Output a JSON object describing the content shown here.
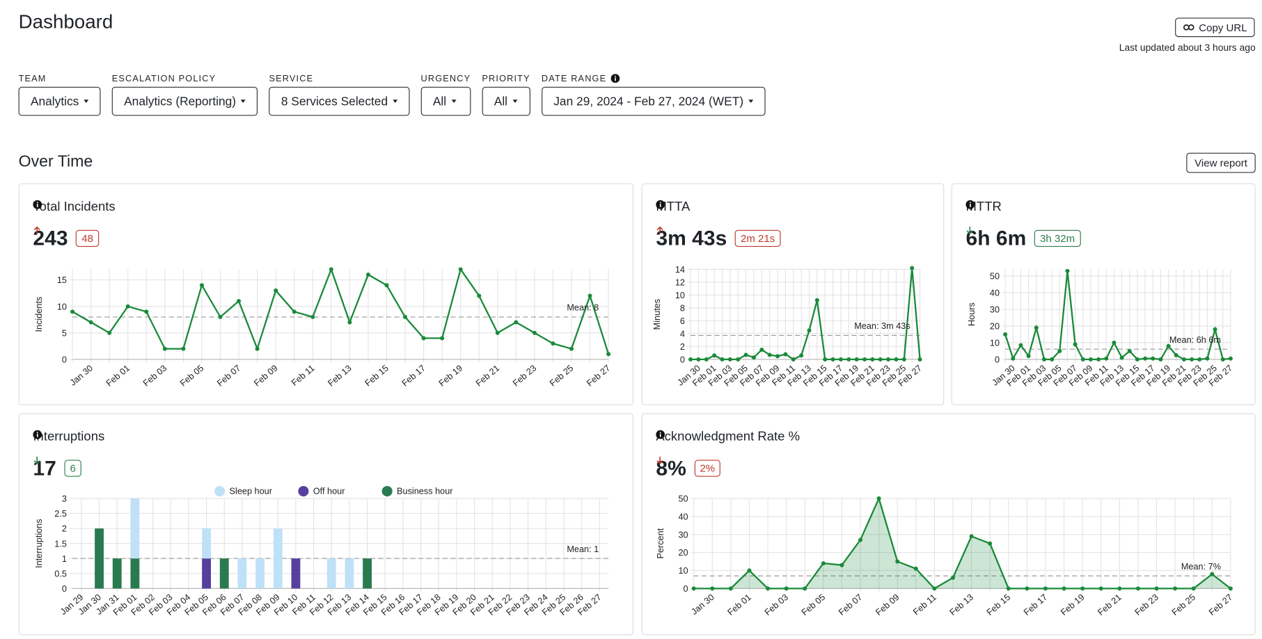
{
  "header": {
    "title": "Dashboard",
    "copy_button": "Copy URL",
    "last_updated": "Last updated about 3 hours ago"
  },
  "filters": [
    {
      "label": "TEAM",
      "value": "Analytics"
    },
    {
      "label": "ESCALATION POLICY",
      "value": "Analytics (Reporting)"
    },
    {
      "label": "SERVICE",
      "value": "8 Services Selected"
    },
    {
      "label": "URGENCY",
      "value": "All"
    },
    {
      "label": "PRIORITY",
      "value": "All"
    },
    {
      "label": "DATE RANGE",
      "value": "Jan 29, 2024 - Feb 27, 2024 (WET)"
    }
  ],
  "section": {
    "title": "Over Time",
    "button": "View report"
  },
  "chart_data": [
    {
      "type": "line",
      "title": "Total Incidents",
      "metric": "243",
      "delta": "48",
      "delta_arrow": "up",
      "delta_color": "#c0392b",
      "y_label": "Incidents",
      "color": "#1a8a3a",
      "grid": true,
      "categories": [
        null,
        "Jan 30",
        null,
        "Feb 01",
        null,
        "Feb 03",
        null,
        "Feb 05",
        null,
        "Feb 07",
        null,
        "Feb 09",
        null,
        "Feb 11",
        null,
        "Feb 13",
        null,
        "Feb 15",
        null,
        "Feb 17",
        null,
        "Feb 19",
        null,
        "Feb 21",
        null,
        "Feb 23",
        null,
        "Feb 25",
        null,
        "Feb 27"
      ],
      "values": [
        9,
        7,
        5,
        10,
        9,
        2,
        2,
        14,
        8,
        11,
        2,
        13,
        9,
        8,
        17,
        7,
        16,
        14,
        8,
        4,
        4,
        17,
        12,
        5,
        7,
        5,
        3,
        2,
        12,
        1
      ],
      "ylim": [
        0,
        17
      ],
      "yticks": [
        0,
        5,
        10,
        15
      ],
      "mean": {
        "value": 8,
        "label": "Mean: 8"
      }
    },
    {
      "type": "line",
      "title": "MTTA",
      "metric": "3m 43s",
      "delta": "2m 21s",
      "delta_arrow": "up",
      "delta_color": "#c0392b",
      "y_label": "Minutes",
      "color": "#1a8a3a",
      "grid": true,
      "categories": [
        null,
        "Jan 30",
        null,
        "Feb 01",
        null,
        "Feb 03",
        null,
        "Feb 05",
        null,
        "Feb 07",
        null,
        "Feb 09",
        null,
        "Feb 11",
        null,
        "Feb 13",
        null,
        "Feb 15",
        null,
        "Feb 17",
        null,
        "Feb 19",
        null,
        "Feb 21",
        null,
        "Feb 23",
        null,
        "Feb 25",
        null,
        "Feb 27"
      ],
      "values": [
        0,
        0,
        0,
        0.6,
        0,
        0,
        0,
        0.7,
        0.3,
        1.5,
        0.7,
        0.5,
        0.8,
        0,
        0.6,
        4.5,
        9.2,
        0,
        0,
        0,
        0,
        0,
        0,
        0,
        0,
        0,
        0,
        0,
        14.2,
        0
      ],
      "ylim": [
        0,
        14
      ],
      "yticks": [
        0,
        2,
        4,
        6,
        8,
        10,
        12,
        14
      ],
      "mean": {
        "value": 3.72,
        "label": "Mean: 3m 43s"
      }
    },
    {
      "type": "line",
      "title": "MTTR",
      "metric": "6h 6m",
      "delta": "3h 32m",
      "delta_arrow": "down",
      "delta_color": "#2e7d4f",
      "y_label": "Hours",
      "color": "#1a8a3a",
      "grid": true,
      "categories": [
        null,
        "Jan 30",
        null,
        "Feb 01",
        null,
        "Feb 03",
        null,
        "Feb 05",
        null,
        "Feb 07",
        null,
        "Feb 09",
        null,
        "Feb 11",
        null,
        "Feb 13",
        null,
        "Feb 15",
        null,
        "Feb 17",
        null,
        "Feb 19",
        null,
        "Feb 21",
        null,
        "Feb 23",
        null,
        "Feb 25",
        null,
        "Feb 27"
      ],
      "values": [
        15,
        0.5,
        8.5,
        2,
        19,
        0,
        0,
        5,
        53,
        9,
        0,
        0,
        0,
        0.5,
        10,
        1,
        5,
        0,
        0.5,
        0.5,
        0,
        8,
        2.5,
        0,
        0,
        0,
        0.5,
        18,
        0,
        0.5
      ],
      "ylim": [
        0,
        54
      ],
      "yticks": [
        0,
        10,
        20,
        30,
        40,
        50
      ],
      "mean": {
        "value": 6.1,
        "label": "Mean: 6h 6m"
      }
    },
    {
      "type": "stacked-bar",
      "title": "Interruptions",
      "metric": "17",
      "delta": "6",
      "delta_arrow": "down",
      "delta_color": "#2e7d4f",
      "y_label": "Interruptions",
      "grid": true,
      "categories": [
        "Jan 29",
        "Jan 30",
        "Jan 31",
        "Feb 01",
        "Feb 02",
        "Feb 03",
        "Feb 04",
        "Feb 05",
        "Feb 06",
        "Feb 07",
        "Feb 08",
        "Feb 09",
        "Feb 10",
        "Feb 11",
        "Feb 12",
        "Feb 13",
        "Feb 14",
        "Feb 15",
        "Feb 16",
        "Feb 17",
        "Feb 18",
        "Feb 19",
        "Feb 20",
        "Feb 21",
        "Feb 22",
        "Feb 23",
        "Feb 24",
        "Feb 25",
        "Feb 26",
        "Feb 27"
      ],
      "series": [
        {
          "name": "Sleep hour",
          "color": "#bfe1f7",
          "values": [
            0,
            0,
            0,
            2,
            0,
            0,
            0,
            1,
            0,
            1,
            1,
            2,
            0,
            0,
            1,
            1,
            0,
            0,
            0,
            0,
            0,
            0,
            0,
            0,
            0,
            0,
            0,
            0,
            0,
            0
          ]
        },
        {
          "name": "Off hour",
          "color": "#55409e",
          "values": [
            0,
            0,
            0,
            0,
            0,
            0,
            0,
            1,
            0,
            0,
            0,
            0,
            1,
            0,
            0,
            0,
            0,
            0,
            0,
            0,
            0,
            0,
            0,
            0,
            0,
            0,
            0,
            0,
            0,
            0
          ]
        },
        {
          "name": "Business hour",
          "color": "#2a7a4f",
          "values": [
            0,
            2,
            1,
            1,
            0,
            0,
            0,
            0,
            1,
            0,
            0,
            0,
            0,
            0,
            0,
            0,
            1,
            0,
            0,
            0,
            0,
            0,
            0,
            0,
            0,
            0,
            0,
            0,
            0,
            0
          ]
        }
      ],
      "ylim": [
        0,
        3
      ],
      "yticks": [
        0,
        0.5,
        1,
        1.5,
        2,
        2.5,
        3
      ],
      "mean": {
        "value": 1,
        "label": "Mean: 1"
      }
    },
    {
      "type": "area",
      "title": "Acknowledgment Rate %",
      "metric": "8%",
      "delta": "2%",
      "delta_arrow": "down",
      "delta_color": "#c0392b",
      "y_label": "Percent",
      "color": "#1a8a3a",
      "grid": true,
      "categories": [
        null,
        "Jan 30",
        null,
        "Feb 01",
        null,
        "Feb 03",
        null,
        "Feb 05",
        null,
        "Feb 07",
        null,
        "Feb 09",
        null,
        "Feb 11",
        null,
        "Feb 13",
        null,
        "Feb 15",
        null,
        "Feb 17",
        null,
        "Feb 19",
        null,
        "Feb 21",
        null,
        "Feb 23",
        null,
        "Feb 25",
        null,
        "Feb 27"
      ],
      "values": [
        0,
        0,
        0,
        10,
        0,
        0,
        0,
        14,
        13,
        27,
        50,
        15,
        11,
        0,
        6,
        29,
        25,
        0,
        0,
        0,
        0,
        0,
        0,
        0,
        0,
        0,
        0,
        0,
        8,
        0
      ],
      "ylim": [
        0,
        50
      ],
      "yticks": [
        0,
        10,
        20,
        30,
        40,
        50
      ],
      "mean": {
        "value": 7,
        "label": "Mean: 7%"
      }
    }
  ]
}
